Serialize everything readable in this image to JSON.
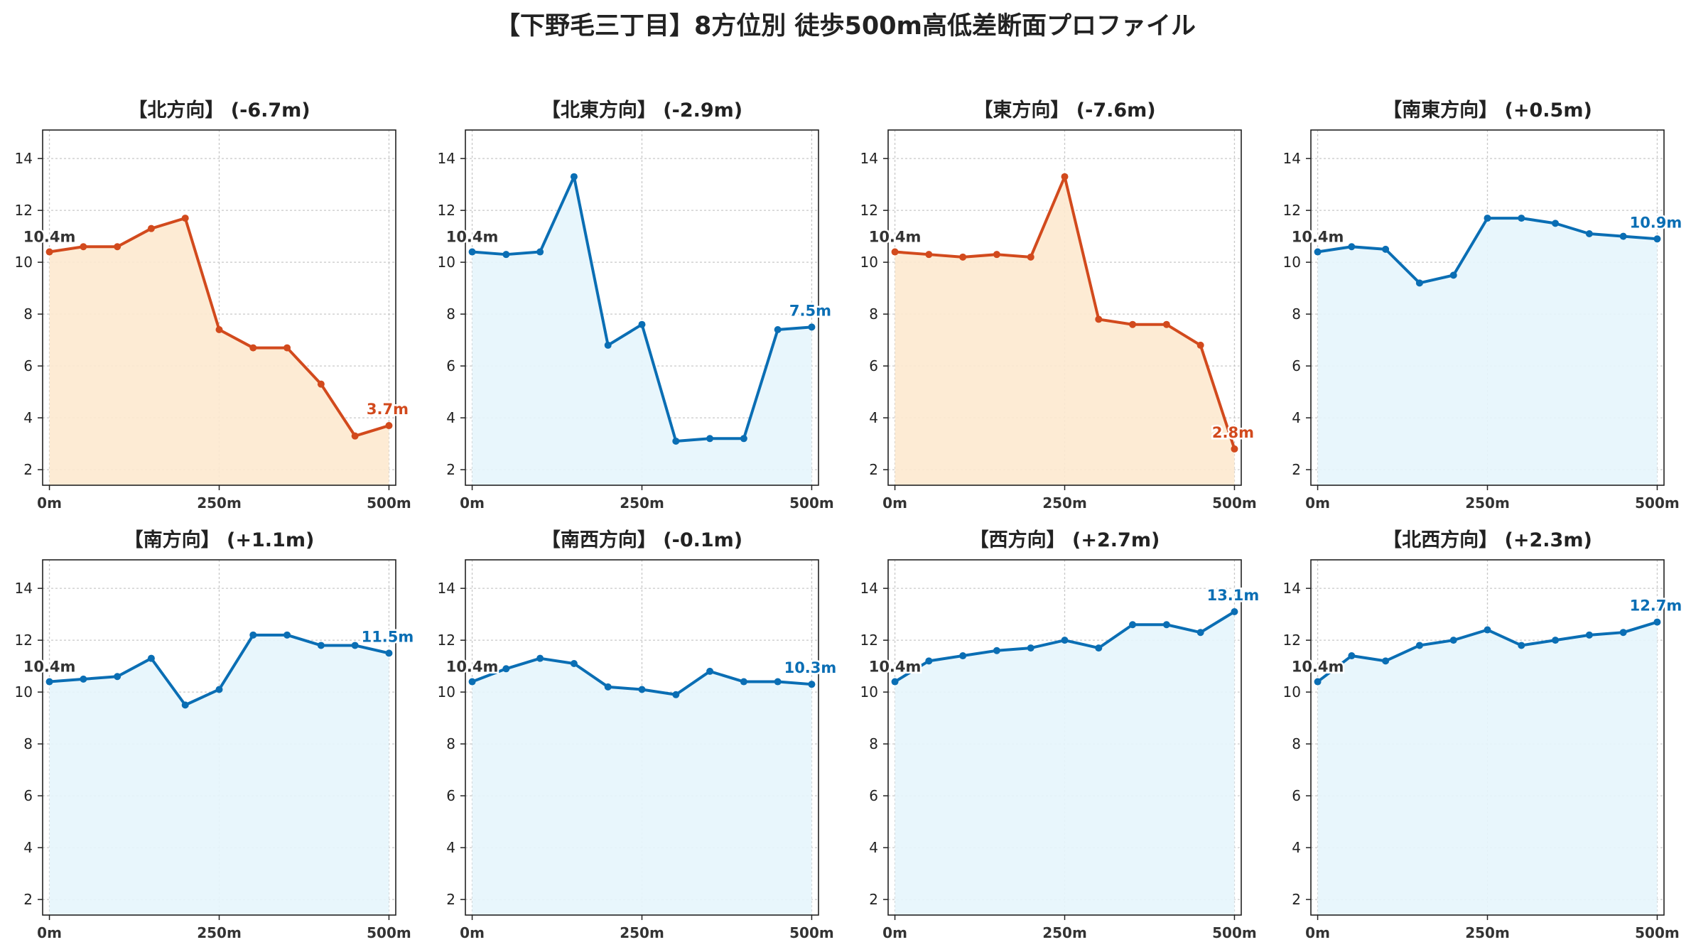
{
  "suptitle": "【下野毛三丁目】8方位別 徒歩500m高低差断面プロファイル",
  "colors": {
    "down_line": "#d24a1d",
    "down_fill": "#fde9cf",
    "up_line": "#0a6eb4",
    "up_fill": "#e6f5fc",
    "start_label": "#333333"
  },
  "chart_data": [
    {
      "type": "area",
      "title": "【北方向】 (-6.7m)",
      "trend": "down",
      "x": [
        0,
        50,
        100,
        150,
        200,
        250,
        300,
        350,
        400,
        450,
        500
      ],
      "y": [
        10.4,
        10.6,
        10.6,
        11.3,
        11.7,
        7.4,
        6.7,
        6.7,
        5.3,
        3.3,
        3.7
      ],
      "start_label": "10.4m",
      "end_label": "3.7m",
      "xticks": [
        "0m",
        "250m",
        "500m"
      ],
      "yticks": [
        2,
        4,
        6,
        8,
        10,
        12,
        14
      ],
      "xlim": [
        -10,
        510
      ],
      "ylim": [
        1.4,
        15.1
      ],
      "grid": true
    },
    {
      "type": "area",
      "title": "【北東方向】 (-2.9m)",
      "trend": "up",
      "x": [
        0,
        50,
        100,
        150,
        200,
        250,
        300,
        350,
        400,
        450,
        500
      ],
      "y": [
        10.4,
        10.3,
        10.4,
        13.3,
        6.8,
        7.6,
        3.1,
        3.2,
        3.2,
        7.4,
        7.5
      ],
      "start_label": "10.4m",
      "end_label": "7.5m",
      "xticks": [
        "0m",
        "250m",
        "500m"
      ],
      "yticks": [
        2,
        4,
        6,
        8,
        10,
        12,
        14
      ],
      "xlim": [
        -10,
        510
      ],
      "ylim": [
        1.4,
        15.1
      ],
      "grid": true
    },
    {
      "type": "area",
      "title": "【東方向】 (-7.6m)",
      "trend": "down",
      "x": [
        0,
        50,
        100,
        150,
        200,
        250,
        300,
        350,
        400,
        450,
        500
      ],
      "y": [
        10.4,
        10.3,
        10.2,
        10.3,
        10.2,
        13.3,
        7.8,
        7.6,
        7.6,
        6.8,
        2.8
      ],
      "start_label": "10.4m",
      "end_label": "2.8m",
      "xticks": [
        "0m",
        "250m",
        "500m"
      ],
      "yticks": [
        2,
        4,
        6,
        8,
        10,
        12,
        14
      ],
      "xlim": [
        -10,
        510
      ],
      "ylim": [
        1.4,
        15.1
      ],
      "grid": true
    },
    {
      "type": "area",
      "title": "【南東方向】 (+0.5m)",
      "trend": "up",
      "x": [
        0,
        50,
        100,
        150,
        200,
        250,
        300,
        350,
        400,
        450,
        500
      ],
      "y": [
        10.4,
        10.6,
        10.5,
        9.2,
        9.5,
        11.7,
        11.7,
        11.5,
        11.1,
        11.0,
        10.9
      ],
      "start_label": "10.4m",
      "end_label": "10.9m",
      "xticks": [
        "0m",
        "250m",
        "500m"
      ],
      "yticks": [
        2,
        4,
        6,
        8,
        10,
        12,
        14
      ],
      "xlim": [
        -10,
        510
      ],
      "ylim": [
        1.4,
        15.1
      ],
      "grid": true
    },
    {
      "type": "area",
      "title": "【南方向】 (+1.1m)",
      "trend": "up",
      "x": [
        0,
        50,
        100,
        150,
        200,
        250,
        300,
        350,
        400,
        450,
        500
      ],
      "y": [
        10.4,
        10.5,
        10.6,
        11.3,
        9.5,
        10.1,
        12.2,
        12.2,
        11.8,
        11.8,
        11.5
      ],
      "start_label": "10.4m",
      "end_label": "11.5m",
      "xticks": [
        "0m",
        "250m",
        "500m"
      ],
      "yticks": [
        2,
        4,
        6,
        8,
        10,
        12,
        14
      ],
      "xlim": [
        -10,
        510
      ],
      "ylim": [
        1.4,
        15.1
      ],
      "grid": true
    },
    {
      "type": "area",
      "title": "【南西方向】 (-0.1m)",
      "trend": "up",
      "x": [
        0,
        50,
        100,
        150,
        200,
        250,
        300,
        350,
        400,
        450,
        500
      ],
      "y": [
        10.4,
        10.9,
        11.3,
        11.1,
        10.2,
        10.1,
        9.9,
        10.8,
        10.4,
        10.4,
        10.3
      ],
      "start_label": "10.4m",
      "end_label": "10.3m",
      "xticks": [
        "0m",
        "250m",
        "500m"
      ],
      "yticks": [
        2,
        4,
        6,
        8,
        10,
        12,
        14
      ],
      "xlim": [
        -10,
        510
      ],
      "ylim": [
        1.4,
        15.1
      ],
      "grid": true
    },
    {
      "type": "area",
      "title": "【西方向】 (+2.7m)",
      "trend": "up",
      "x": [
        0,
        50,
        100,
        150,
        200,
        250,
        300,
        350,
        400,
        450,
        500
      ],
      "y": [
        10.4,
        11.2,
        11.4,
        11.6,
        11.7,
        12.0,
        11.7,
        12.6,
        12.6,
        12.3,
        13.1
      ],
      "start_label": "10.4m",
      "end_label": "13.1m",
      "xticks": [
        "0m",
        "250m",
        "500m"
      ],
      "yticks": [
        2,
        4,
        6,
        8,
        10,
        12,
        14
      ],
      "xlim": [
        -10,
        510
      ],
      "ylim": [
        1.4,
        15.1
      ],
      "grid": true
    },
    {
      "type": "area",
      "title": "【北西方向】 (+2.3m)",
      "trend": "up",
      "x": [
        0,
        50,
        100,
        150,
        200,
        250,
        300,
        350,
        400,
        450,
        500
      ],
      "y": [
        10.4,
        11.4,
        11.2,
        11.8,
        12.0,
        12.4,
        11.8,
        12.0,
        12.2,
        12.3,
        12.7
      ],
      "start_label": "10.4m",
      "end_label": "12.7m",
      "xticks": [
        "0m",
        "250m",
        "500m"
      ],
      "yticks": [
        2,
        4,
        6,
        8,
        10,
        12,
        14
      ],
      "xlim": [
        -10,
        510
      ],
      "ylim": [
        1.4,
        15.1
      ],
      "grid": true
    }
  ]
}
